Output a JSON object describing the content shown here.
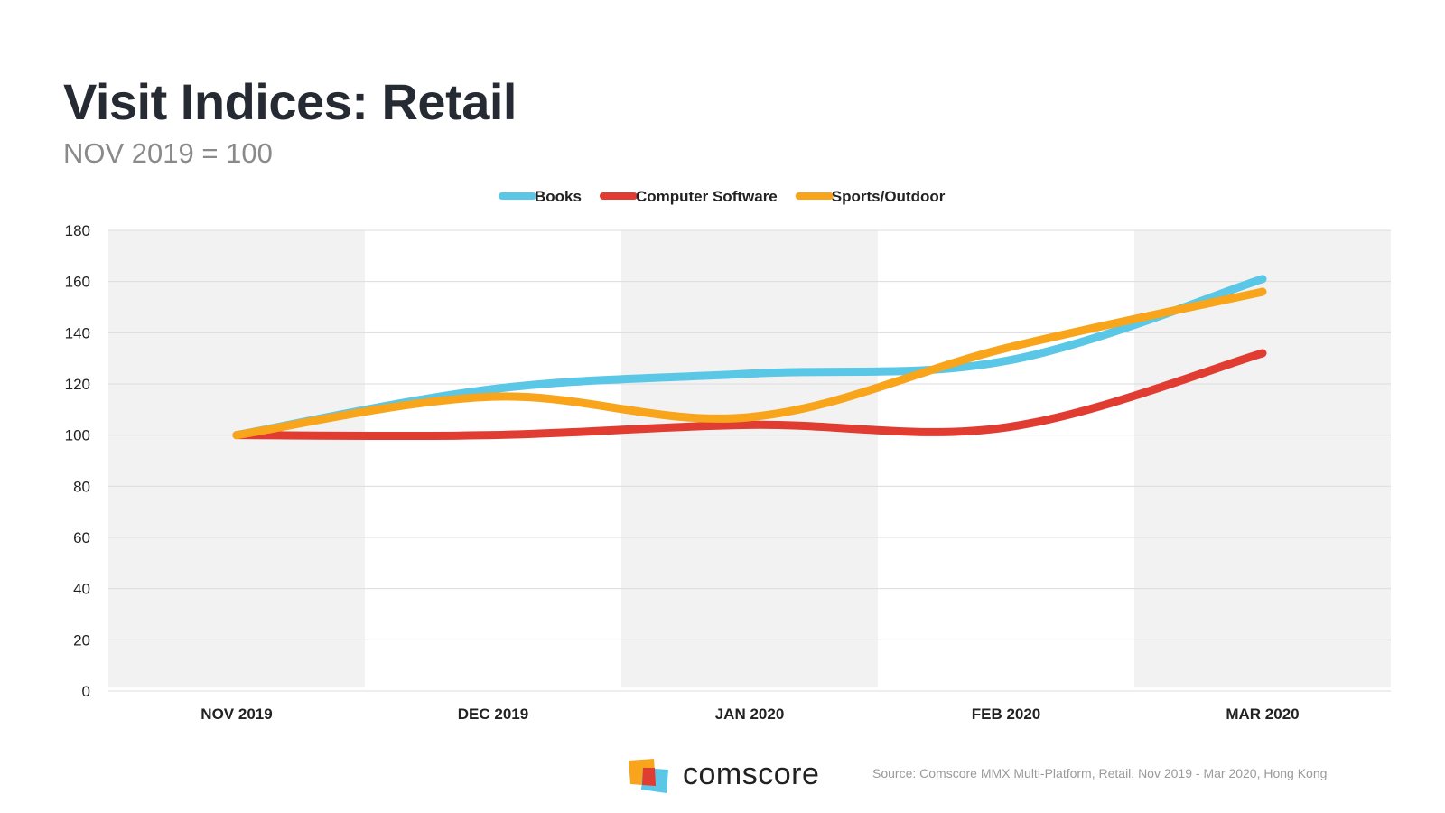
{
  "header": {
    "title": "Visit Indices: Retail",
    "subtitle": "NOV 2019 = 100"
  },
  "chart_data": {
    "type": "line",
    "title": "Visit Indices: Retail",
    "subtitle": "NOV 2019 = 100",
    "categories": [
      "NOV 2019",
      "DEC 2019",
      "JAN 2020",
      "FEB 2020",
      "MAR 2020"
    ],
    "y_ticks": [
      0,
      20,
      40,
      60,
      80,
      100,
      120,
      140,
      160,
      180
    ],
    "ylim": [
      0,
      180
    ],
    "grid": true,
    "legend_position": "top",
    "series": [
      {
        "name": "Books",
        "color": "#5bc7e6",
        "values": [
          100,
          118,
          124,
          129,
          161
        ]
      },
      {
        "name": "Computer Software",
        "color": "#e03c31",
        "values": [
          100,
          100,
          104,
          103,
          132
        ]
      },
      {
        "name": "Sports/Outdoor",
        "color": "#f8a51b",
        "values": [
          100,
          115,
          107,
          134,
          156
        ]
      }
    ]
  },
  "footer": {
    "brand": "comscore",
    "source": "Source: Comscore MMX Multi-Platform, Retail, Nov 2019 - Mar 2020, Hong Kong"
  }
}
